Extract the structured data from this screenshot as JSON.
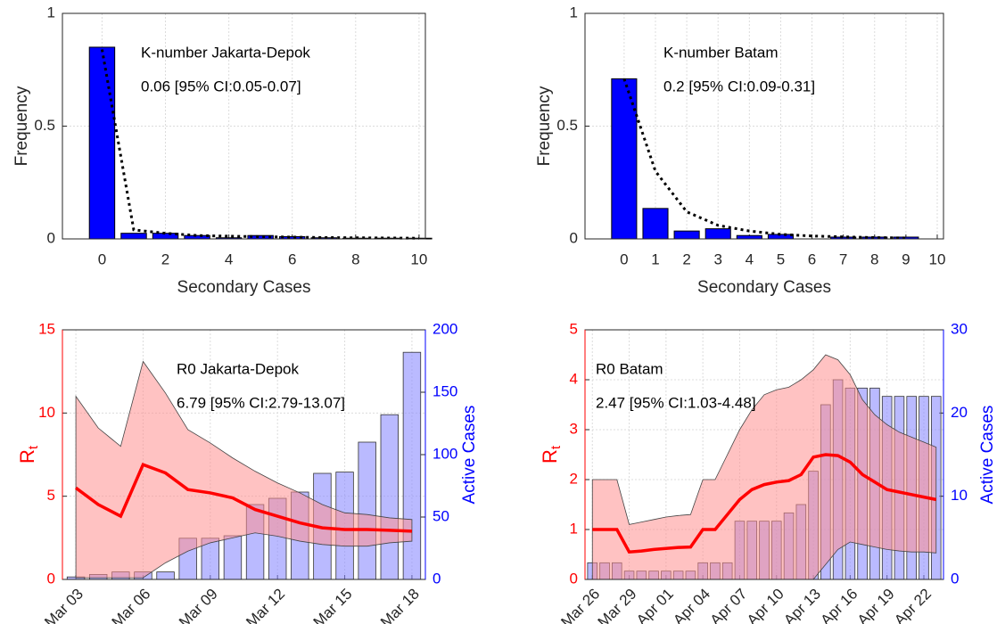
{
  "chart_data": [
    {
      "type": "bar",
      "annotations": [
        "K-number Jakarta-Depok",
        "0.06 [95% CI:0.05-0.07]"
      ],
      "xlabel": "Secondary Cases",
      "ylabel": "Frequency",
      "x": [
        0,
        1,
        2,
        3,
        4,
        5,
        6,
        7,
        8,
        9,
        10
      ],
      "values": [
        0.85,
        0.025,
        0.025,
        0.015,
        0.005,
        0.015,
        0.01,
        0.005,
        0.003,
        0.003,
        0.003
      ],
      "fit": [
        0.84,
        0.04,
        0.025,
        0.015,
        0.012,
        0.01,
        0.008,
        0.006,
        0.005,
        0.004,
        0.003
      ],
      "color": "#0000ff",
      "xlim": [
        -1.25,
        10.2
      ],
      "xticks": [
        0,
        2,
        4,
        6,
        8,
        10
      ],
      "ylim": [
        0,
        1
      ],
      "yticks": [
        0,
        0.5,
        1
      ],
      "grid": true
    },
    {
      "type": "bar",
      "annotations": [
        "K-number Batam",
        "0.2 [95% CI:0.09-0.31]"
      ],
      "xlabel": "Secondary Cases",
      "ylabel": "Frequency",
      "x": [
        0,
        1,
        2,
        3,
        4,
        5,
        6,
        7,
        8,
        9
      ],
      "values": [
        0.71,
        0.135,
        0.035,
        0.045,
        0.015,
        0.02,
        0,
        0.008,
        0.008,
        0.008
      ],
      "fit": [
        0.71,
        0.3,
        0.12,
        0.06,
        0.035,
        0.02,
        0.013,
        0.009,
        0.006,
        0.004
      ],
      "color": "#0000ff",
      "xlim": [
        -1.25,
        10.2
      ],
      "xticks": [
        0,
        1,
        2,
        3,
        4,
        5,
        6,
        7,
        8,
        9,
        10
      ],
      "ylim": [
        0,
        1
      ],
      "yticks": [
        0,
        0.5,
        1
      ],
      "grid": true
    },
    {
      "type": "rt",
      "annotations": [
        "R0 Jakarta-Depok",
        "6.79 [95% CI:2.79-13.07]"
      ],
      "ylabel": "R",
      "ylabel_sub": "t",
      "y2label": "Active Cases",
      "categories": [
        "Mar 03",
        null,
        null,
        "Mar 06",
        null,
        null,
        "Mar 09",
        null,
        null,
        "Mar 12",
        null,
        null,
        "Mar 15",
        null,
        null,
        "Mar 18"
      ],
      "values": [
        5.5,
        4.5,
        3.8,
        6.9,
        6.4,
        5.4,
        5.2,
        4.9,
        4.2,
        3.8,
        3.4,
        3.1,
        3.0,
        3.0,
        2.95,
        2.9
      ],
      "upper": [
        11,
        9.1,
        8,
        13.1,
        11.2,
        9,
        8.2,
        7.3,
        6.5,
        5.8,
        5.2,
        4.5,
        4.0,
        3.9,
        3.7,
        3.6
      ],
      "lower": [
        0.1,
        0.1,
        0.1,
        0.1,
        1,
        1.7,
        2.2,
        2.5,
        2.8,
        2.6,
        2.3,
        2.1,
        2.0,
        2.0,
        2.2,
        2.3
      ],
      "active": [
        2,
        4,
        6,
        6,
        6,
        33,
        33,
        35,
        60,
        65,
        70,
        85,
        86,
        110,
        132,
        182
      ],
      "color": "#ff0000",
      "band_color": "#ff9090",
      "bar_color": "#8c8cff",
      "y2_color": "#0000ff",
      "ylim": [
        0,
        15
      ],
      "yticks": [
        0,
        5,
        10,
        15
      ],
      "y2lim": [
        0,
        200
      ],
      "y2ticks": [
        0,
        50,
        100,
        150,
        200
      ],
      "grid": true
    },
    {
      "type": "rt",
      "annotations": [
        "R0 Batam",
        "2.47 [95% CI:1.03-4.48]"
      ],
      "ylabel": "R",
      "ylabel_sub": "t",
      "y2label": "Active Cases",
      "categories": [
        "Mar 26",
        null,
        null,
        "Mar 29",
        null,
        null,
        "Apr 01",
        null,
        null,
        "Apr 04",
        null,
        null,
        "Apr 07",
        null,
        null,
        "Apr 10",
        null,
        null,
        "Apr 13",
        null,
        null,
        "Apr 16",
        null,
        null,
        "Apr 19",
        null,
        null,
        "Apr 22",
        null
      ],
      "values": [
        1,
        1,
        1,
        0.55,
        0.57,
        0.6,
        0.62,
        0.64,
        0.65,
        1,
        1,
        1.3,
        1.6,
        1.8,
        1.9,
        1.95,
        1.98,
        2.1,
        2.45,
        2.5,
        2.48,
        2.35,
        2.1,
        1.95,
        1.8,
        1.75,
        1.7,
        1.65,
        1.6
      ],
      "upper": [
        2,
        2,
        2,
        1.1,
        1.15,
        1.2,
        1.25,
        1.28,
        1.3,
        2,
        2,
        2.5,
        3.0,
        3.4,
        3.7,
        3.8,
        3.85,
        4.0,
        4.2,
        4.5,
        4.4,
        4.1,
        3.6,
        3.3,
        3.1,
        2.95,
        2.85,
        2.75,
        2.65
      ],
      "lower": [
        0,
        0,
        0,
        0,
        0,
        0,
        0,
        0,
        0,
        0,
        0,
        0,
        0,
        0,
        0,
        0,
        0,
        0,
        0,
        0.3,
        0.6,
        0.75,
        0.7,
        0.65,
        0.6,
        0.57,
        0.55,
        0.55,
        0.53
      ],
      "active": [
        2,
        2,
        2,
        1,
        1,
        1,
        1,
        1,
        1,
        2,
        2,
        2,
        7,
        7,
        7,
        7,
        8,
        9,
        13,
        21,
        24,
        23,
        23,
        23,
        22,
        22,
        22,
        22,
        22
      ],
      "color": "#ff0000",
      "band_color": "#ff9090",
      "bar_color": "#8c8cff",
      "y2_color": "#0000ff",
      "ylim": [
        0,
        5
      ],
      "yticks": [
        0,
        1,
        2,
        3,
        4,
        5
      ],
      "y2lim": [
        0,
        30
      ],
      "y2ticks": [
        0,
        10,
        20,
        30
      ],
      "grid": true
    }
  ]
}
